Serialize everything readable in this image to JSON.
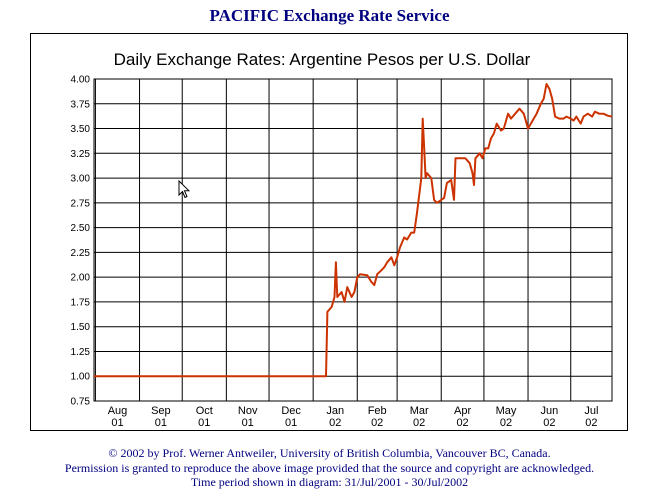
{
  "page": {
    "title": "PACIFIC Exchange Rate Service"
  },
  "footer": {
    "copyright": "© 2002 by Prof. Werner Antweiler, University of British Columbia, Vancouver BC, Canada.",
    "permission": "Permission is granted to reproduce the above image provided that the source and copyright are acknowledged.",
    "period": "Time period shown in diagram: 31/Jul/2001 - 30/Jul/2002"
  },
  "colors": {
    "line": "#cc3300",
    "title": "#000080"
  },
  "chart_data": {
    "type": "line",
    "title": "Daily Exchange Rates: Argentine Pesos per U.S. Dollar",
    "xlabel": "",
    "ylabel": "",
    "ylim": [
      0.75,
      4.0
    ],
    "xlim": [
      "2001-07-31",
      "2002-07-30"
    ],
    "yticks": [
      "4.00",
      "3.75",
      "3.50",
      "3.25",
      "3.00",
      "2.75",
      "2.50",
      "2.25",
      "2.00",
      "1.75",
      "1.50",
      "1.25",
      "1.00",
      "0.75"
    ],
    "xticks": [
      {
        "month": "Aug",
        "year": "01",
        "date": "2001-08-01"
      },
      {
        "month": "Sep",
        "year": "01",
        "date": "2001-09-01"
      },
      {
        "month": "Oct",
        "year": "01",
        "date": "2001-10-01"
      },
      {
        "month": "Nov",
        "year": "01",
        "date": "2001-11-01"
      },
      {
        "month": "Dec",
        "year": "01",
        "date": "2001-12-01"
      },
      {
        "month": "Jan",
        "year": "02",
        "date": "2002-01-01"
      },
      {
        "month": "Feb",
        "year": "02",
        "date": "2002-02-01"
      },
      {
        "month": "Mar",
        "year": "02",
        "date": "2002-03-01"
      },
      {
        "month": "Apr",
        "year": "02",
        "date": "2002-04-01"
      },
      {
        "month": "May",
        "year": "02",
        "date": "2002-05-01"
      },
      {
        "month": "Jun",
        "year": "02",
        "date": "2002-06-01"
      },
      {
        "month": "Jul",
        "year": "02",
        "date": "2002-07-01"
      }
    ],
    "grid": true,
    "series": [
      {
        "points": [
          [
            "2001-07-31",
            1.0
          ],
          [
            "2002-01-10",
            1.0
          ],
          [
            "2002-01-11",
            1.65
          ],
          [
            "2002-01-14",
            1.7
          ],
          [
            "2002-01-16",
            1.8
          ],
          [
            "2002-01-17",
            2.15
          ],
          [
            "2002-01-18",
            1.8
          ],
          [
            "2002-01-21",
            1.85
          ],
          [
            "2002-01-23",
            1.75
          ],
          [
            "2002-01-25",
            1.9
          ],
          [
            "2002-01-28",
            1.8
          ],
          [
            "2002-01-30",
            1.85
          ],
          [
            "2002-02-01",
            2.0
          ],
          [
            "2002-02-03",
            2.03
          ],
          [
            "2002-02-08",
            2.02
          ],
          [
            "2002-02-11",
            1.95
          ],
          [
            "2002-02-13",
            1.92
          ],
          [
            "2002-02-15",
            2.03
          ],
          [
            "2002-02-18",
            2.07
          ],
          [
            "2002-02-20",
            2.1
          ],
          [
            "2002-02-22",
            2.15
          ],
          [
            "2002-02-25",
            2.2
          ],
          [
            "2002-02-27",
            2.12
          ],
          [
            "2002-03-01",
            2.2
          ],
          [
            "2002-03-03",
            2.3
          ],
          [
            "2002-03-06",
            2.4
          ],
          [
            "2002-03-08",
            2.38
          ],
          [
            "2002-03-11",
            2.45
          ],
          [
            "2002-03-13",
            2.45
          ],
          [
            "2002-03-15",
            2.65
          ],
          [
            "2002-03-18",
            3.0
          ],
          [
            "2002-03-19",
            3.6
          ],
          [
            "2002-03-20",
            3.3
          ],
          [
            "2002-03-21",
            3.0
          ],
          [
            "2002-03-22",
            3.05
          ],
          [
            "2002-03-25",
            3.0
          ],
          [
            "2002-03-27",
            2.78
          ],
          [
            "2002-03-29",
            2.75
          ],
          [
            "2002-04-01",
            2.78
          ],
          [
            "2002-04-03",
            2.8
          ],
          [
            "2002-04-05",
            2.95
          ],
          [
            "2002-04-08",
            2.98
          ],
          [
            "2002-04-10",
            2.78
          ],
          [
            "2002-04-11",
            3.2
          ],
          [
            "2002-04-15",
            3.2
          ],
          [
            "2002-04-18",
            3.2
          ],
          [
            "2002-04-21",
            3.15
          ],
          [
            "2002-04-23",
            3.05
          ],
          [
            "2002-04-24",
            2.93
          ],
          [
            "2002-04-25",
            3.2
          ],
          [
            "2002-04-28",
            3.25
          ],
          [
            "2002-04-30",
            3.2
          ],
          [
            "2002-05-02",
            3.3
          ],
          [
            "2002-05-04",
            3.3
          ],
          [
            "2002-05-06",
            3.4
          ],
          [
            "2002-05-08",
            3.45
          ],
          [
            "2002-05-10",
            3.55
          ],
          [
            "2002-05-13",
            3.48
          ],
          [
            "2002-05-15",
            3.5
          ],
          [
            "2002-05-18",
            3.65
          ],
          [
            "2002-05-20",
            3.6
          ],
          [
            "2002-05-23",
            3.65
          ],
          [
            "2002-05-26",
            3.7
          ],
          [
            "2002-05-29",
            3.65
          ],
          [
            "2002-06-01",
            3.5
          ],
          [
            "2002-06-03",
            3.55
          ],
          [
            "2002-06-05",
            3.6
          ],
          [
            "2002-06-07",
            3.65
          ],
          [
            "2002-06-10",
            3.75
          ],
          [
            "2002-06-12",
            3.8
          ],
          [
            "2002-06-14",
            3.95
          ],
          [
            "2002-06-16",
            3.9
          ],
          [
            "2002-06-18",
            3.8
          ],
          [
            "2002-06-20",
            3.62
          ],
          [
            "2002-06-23",
            3.6
          ],
          [
            "2002-06-26",
            3.6
          ],
          [
            "2002-06-28",
            3.62
          ],
          [
            "2002-07-01",
            3.6
          ],
          [
            "2002-07-03",
            3.58
          ],
          [
            "2002-07-05",
            3.62
          ],
          [
            "2002-07-08",
            3.55
          ],
          [
            "2002-07-10",
            3.62
          ],
          [
            "2002-07-13",
            3.65
          ],
          [
            "2002-07-16",
            3.62
          ],
          [
            "2002-07-18",
            3.67
          ],
          [
            "2002-07-21",
            3.65
          ],
          [
            "2002-07-24",
            3.65
          ],
          [
            "2002-07-27",
            3.63
          ],
          [
            "2002-07-30",
            3.62
          ]
        ]
      }
    ]
  }
}
